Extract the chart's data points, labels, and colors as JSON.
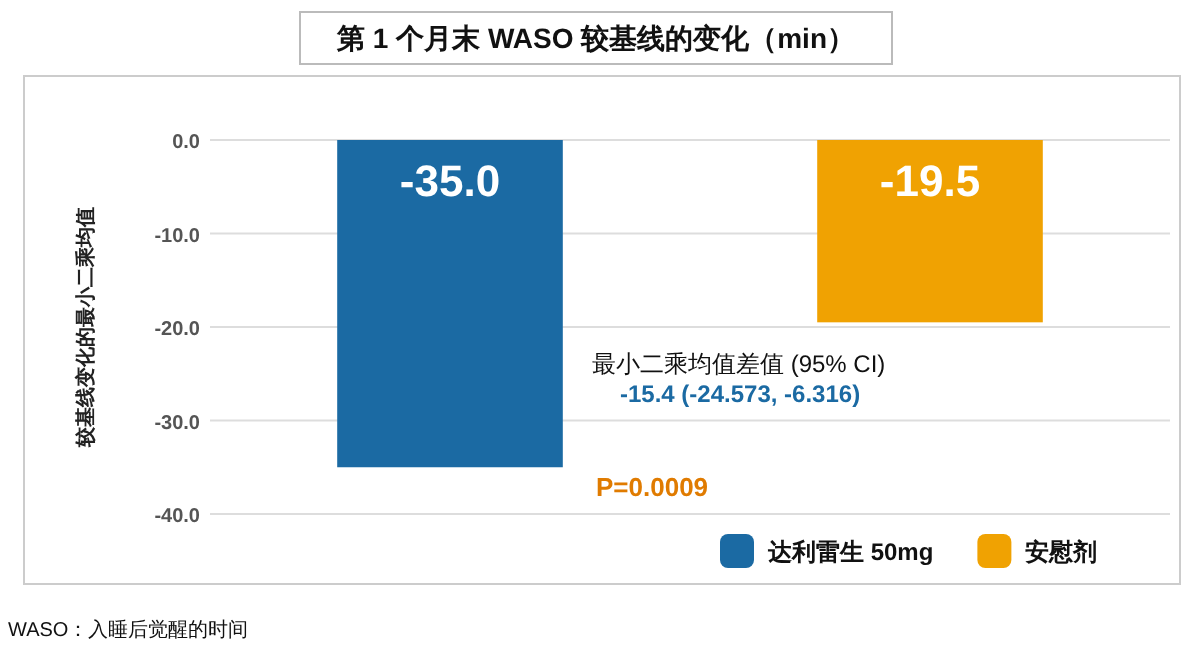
{
  "chart_data": {
    "type": "bar",
    "title": "第 1 个月末 WASO 较基线的变化（min）",
    "ylabel": "较基线变化的最小二乘均值",
    "categories": [
      null,
      null
    ],
    "series": [
      {
        "name": "达利雷生 50mg",
        "color": "#1b6aa3",
        "values": [
          -35.0,
          null
        ],
        "value_labels": [
          "-35.0",
          null
        ]
      },
      {
        "name": "安慰剂",
        "color": "#f0a202",
        "values": [
          null,
          -19.5
        ],
        "value_labels": [
          null,
          "-19.5"
        ]
      }
    ],
    "ylim": [
      -40,
      0
    ],
    "yticks": [
      {
        "value": 0,
        "label": "0.0"
      },
      {
        "value": -10,
        "label": "-10.0"
      },
      {
        "value": -20,
        "label": "-20.0"
      },
      {
        "value": -30,
        "label": "-30.0"
      },
      {
        "value": -40,
        "label": "-40.0"
      }
    ],
    "grid": "y",
    "legend": "bottom right",
    "annotations": [
      "最小二乘均值差值 (95% CI)",
      "-15.4 (-24.573, -6.316)",
      "P=0.0009",
      "WASO：入睡后觉醒的时间"
    ]
  }
}
